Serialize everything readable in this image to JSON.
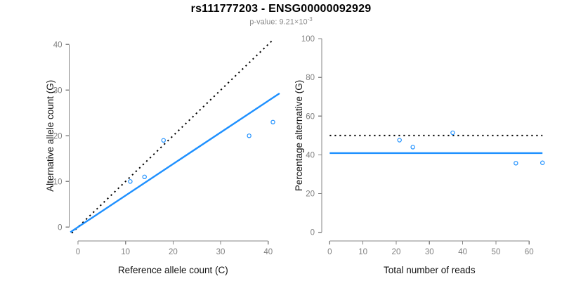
{
  "header": {
    "title": "rs111777203 - ENSG00000092929",
    "subtitle_prefix": "p-value: 9.21×10",
    "subtitle_exponent": "-3"
  },
  "colors": {
    "accent_blue": "#1E90FF",
    "axis_gray": "#858585",
    "tick_label_gray": "#808080",
    "axis_title_black": "#111111",
    "dotted_black": "#000000",
    "subtitle_gray": "#8c8c8c"
  },
  "chart_data": [
    {
      "type": "scatter",
      "name": "allele-counts",
      "xlabel": "Reference allele count (C)",
      "ylabel": "Alternative allele count (G)",
      "xlim": [
        0,
        41
      ],
      "ylim": [
        0,
        41
      ],
      "xticks": [
        0,
        10,
        20,
        30,
        40
      ],
      "yticks": [
        0,
        10,
        20,
        30,
        40
      ],
      "grid": false,
      "legend": "none",
      "marker": "open-circle",
      "points": [
        [
          11,
          10
        ],
        [
          14,
          11
        ],
        [
          18,
          19
        ],
        [
          36,
          20
        ],
        [
          41,
          23
        ]
      ],
      "lines": [
        {
          "name": "identity-line",
          "style": "dotted",
          "color": "#000000",
          "width": 2,
          "from": [
            -1.3,
            -1.3
          ],
          "to": [
            41.2,
            41.2
          ]
        },
        {
          "name": "fit-line",
          "style": "solid",
          "color": "#1E90FF",
          "width": 2.4,
          "from": [
            -1.6,
            -1.1
          ],
          "to": [
            42.4,
            29.3
          ]
        }
      ]
    },
    {
      "type": "scatter",
      "name": "percentage-alternative",
      "xlabel": "Total number of reads",
      "ylabel": "Percentage alternative (G)",
      "xlim": [
        0,
        64
      ],
      "ylim": [
        0,
        100
      ],
      "xticks": [
        0,
        10,
        20,
        30,
        40,
        50,
        60
      ],
      "yticks": [
        0,
        20,
        40,
        60,
        80,
        100
      ],
      "grid": false,
      "legend": "none",
      "marker": "open-circle",
      "points": [
        [
          21,
          47.6
        ],
        [
          25,
          44
        ],
        [
          37,
          51.4
        ],
        [
          56,
          35.7
        ],
        [
          64,
          35.9
        ]
      ],
      "lines": [
        {
          "name": "expected-50-line",
          "style": "dotted",
          "color": "#000000",
          "width": 2,
          "from": [
            0,
            50
          ],
          "to": [
            64,
            50
          ]
        },
        {
          "name": "observed-mean-line",
          "style": "solid",
          "color": "#1E90FF",
          "width": 2.4,
          "from": [
            0,
            40.9
          ],
          "to": [
            64,
            40.9
          ]
        }
      ]
    }
  ]
}
